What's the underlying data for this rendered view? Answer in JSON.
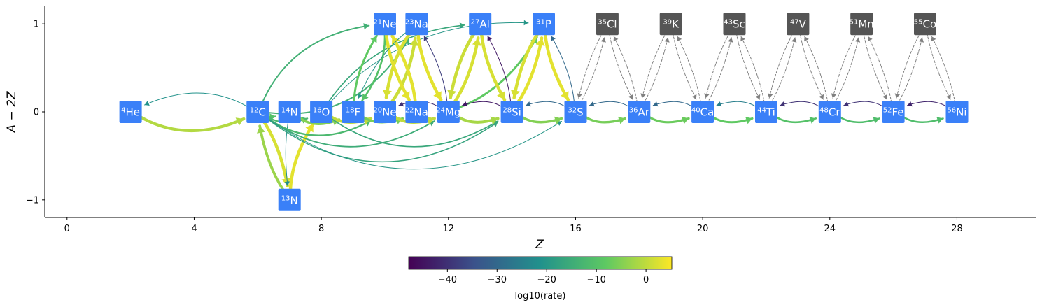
{
  "chart_data": {
    "type": "network",
    "xlabel": "Z",
    "ylabel": "A − 2Z",
    "xlim": [
      -0.7,
      30.5
    ],
    "ylim": [
      -1.2,
      1.2
    ],
    "xticks": [
      0,
      4,
      8,
      12,
      16,
      20,
      24,
      28
    ],
    "yticks": [
      -1,
      0,
      1
    ],
    "colorbar": {
      "label": "log10(rate)",
      "ticks": [
        -40,
        -30,
        -20,
        -10,
        0
      ],
      "min": -47.8,
      "max": 5.2,
      "colormap": [
        "#440154",
        "#3b528b",
        "#21918c",
        "#5ec962",
        "#fde725"
      ]
    },
    "colors": {
      "network_node": "#3a80f8",
      "external_node": "#555555",
      "external_edge": "#808080"
    },
    "nodes": [
      {
        "id": "he4",
        "A": 4,
        "el": "He",
        "Z": 2,
        "N_minus_Z": 0,
        "group": "network"
      },
      {
        "id": "c12",
        "A": 12,
        "el": "C",
        "Z": 6,
        "N_minus_Z": 0,
        "group": "network"
      },
      {
        "id": "n13",
        "A": 13,
        "el": "N",
        "Z": 7,
        "N_minus_Z": -1,
        "group": "network"
      },
      {
        "id": "n14",
        "A": 14,
        "el": "N",
        "Z": 7,
        "N_minus_Z": 0,
        "group": "network"
      },
      {
        "id": "o16",
        "A": 16,
        "el": "O",
        "Z": 8,
        "N_minus_Z": 0,
        "group": "network"
      },
      {
        "id": "f18",
        "A": 18,
        "el": "F",
        "Z": 9,
        "N_minus_Z": 0,
        "group": "network"
      },
      {
        "id": "ne20",
        "A": 20,
        "el": "Ne",
        "Z": 10,
        "N_minus_Z": 0,
        "group": "network"
      },
      {
        "id": "ne21",
        "A": 21,
        "el": "Ne",
        "Z": 10,
        "N_minus_Z": 1,
        "group": "network"
      },
      {
        "id": "na22",
        "A": 22,
        "el": "Na",
        "Z": 11,
        "N_minus_Z": 0,
        "group": "network"
      },
      {
        "id": "na23",
        "A": 23,
        "el": "Na",
        "Z": 11,
        "N_minus_Z": 1,
        "group": "network"
      },
      {
        "id": "mg24",
        "A": 24,
        "el": "Mg",
        "Z": 12,
        "N_minus_Z": 0,
        "group": "network"
      },
      {
        "id": "al27",
        "A": 27,
        "el": "Al",
        "Z": 13,
        "N_minus_Z": 1,
        "group": "network"
      },
      {
        "id": "si28",
        "A": 28,
        "el": "Si",
        "Z": 14,
        "N_minus_Z": 0,
        "group": "network"
      },
      {
        "id": "p31",
        "A": 31,
        "el": "P",
        "Z": 15,
        "N_minus_Z": 1,
        "group": "network"
      },
      {
        "id": "s32",
        "A": 32,
        "el": "S",
        "Z": 16,
        "N_minus_Z": 0,
        "group": "network"
      },
      {
        "id": "cl35",
        "A": 35,
        "el": "Cl",
        "Z": 17,
        "N_minus_Z": 1,
        "group": "external"
      },
      {
        "id": "ar36",
        "A": 36,
        "el": "Ar",
        "Z": 18,
        "N_minus_Z": 0,
        "group": "network"
      },
      {
        "id": "k39",
        "A": 39,
        "el": "K",
        "Z": 19,
        "N_minus_Z": 1,
        "group": "external"
      },
      {
        "id": "ca40",
        "A": 40,
        "el": "Ca",
        "Z": 20,
        "N_minus_Z": 0,
        "group": "network"
      },
      {
        "id": "sc43",
        "A": 43,
        "el": "Sc",
        "Z": 21,
        "N_minus_Z": 1,
        "group": "external"
      },
      {
        "id": "ti44",
        "A": 44,
        "el": "Ti",
        "Z": 22,
        "N_minus_Z": 0,
        "group": "network"
      },
      {
        "id": "v47",
        "A": 47,
        "el": "V",
        "Z": 23,
        "N_minus_Z": 1,
        "group": "external"
      },
      {
        "id": "cr48",
        "A": 48,
        "el": "Cr",
        "Z": 24,
        "N_minus_Z": 0,
        "group": "network"
      },
      {
        "id": "mn51",
        "A": 51,
        "el": "Mn",
        "Z": 25,
        "N_minus_Z": 1,
        "group": "external"
      },
      {
        "id": "fe52",
        "A": 52,
        "el": "Fe",
        "Z": 26,
        "N_minus_Z": 0,
        "group": "network"
      },
      {
        "id": "co55",
        "A": 55,
        "el": "Co",
        "Z": 27,
        "N_minus_Z": 1,
        "group": "external"
      },
      {
        "id": "ni56",
        "A": 56,
        "el": "Ni",
        "Z": 28,
        "N_minus_Z": 0,
        "group": "network"
      }
    ],
    "edges": [
      {
        "from": "he4",
        "to": "c12",
        "rate": -1,
        "curve": 0.28
      },
      {
        "from": "c12",
        "to": "he4",
        "rate": -21,
        "curve": 0.28
      },
      {
        "from": "c12",
        "to": "n13",
        "rate": 2,
        "curve": -0.12
      },
      {
        "from": "n13",
        "to": "c12",
        "rate": -3,
        "curve": -0.12
      },
      {
        "from": "c12",
        "to": "n14",
        "rate": -10,
        "curve": 0.3
      },
      {
        "from": "n14",
        "to": "n13",
        "rate": -22,
        "curve": 0.08
      },
      {
        "from": "n13",
        "to": "o16",
        "rate": 3,
        "curve": -0.15
      },
      {
        "from": "c12",
        "to": "o16",
        "rate": -12,
        "curve": 0.3
      },
      {
        "from": "c12",
        "to": "ne20",
        "rate": -12,
        "curve": 0.35
      },
      {
        "from": "c12",
        "to": "na23",
        "rate": -14,
        "curve": 0.35
      },
      {
        "from": "c12",
        "to": "ne21",
        "rate": -14,
        "curve": -0.3
      },
      {
        "from": "c12",
        "to": "mg24",
        "rate": -15,
        "curve": 0.35
      },
      {
        "from": "c12",
        "to": "si28",
        "rate": -17,
        "curve": 0.38
      },
      {
        "from": "c12",
        "to": "s32",
        "rate": -20,
        "curve": 0.35
      },
      {
        "from": "n14",
        "to": "f18",
        "rate": -5,
        "curve": 0.35
      },
      {
        "from": "o16",
        "to": "ne20",
        "rate": 0,
        "curve": 0.3
      },
      {
        "from": "o16",
        "to": "si28",
        "rate": -16,
        "curve": 0.35
      },
      {
        "from": "o16",
        "to": "al27",
        "rate": -16,
        "curve": -0.25
      },
      {
        "from": "o16",
        "to": "p31",
        "rate": -20,
        "curve": -0.25
      },
      {
        "from": "f18",
        "to": "ne21",
        "rate": -8,
        "curve": -0.15
      },
      {
        "from": "f18",
        "to": "na22",
        "rate": -6,
        "curve": 0.3
      },
      {
        "from": "ne21",
        "to": "f18",
        "rate": -10,
        "curve": -0.2
      },
      {
        "from": "ne20",
        "to": "mg24",
        "rate": 0,
        "curve": 0.3
      },
      {
        "from": "ne20",
        "to": "na23",
        "rate": 1,
        "curve": 0.15
      },
      {
        "from": "na23",
        "to": "ne20",
        "rate": 2,
        "curve": 0.15
      },
      {
        "from": "ne21",
        "to": "na22",
        "rate": 3,
        "curve": 0.12
      },
      {
        "from": "na22",
        "to": "ne21",
        "rate": 3,
        "curve": 0.12
      },
      {
        "from": "na23",
        "to": "mg24",
        "rate": 3,
        "curve": 0.12
      },
      {
        "from": "mg24",
        "to": "na23",
        "rate": -38,
        "curve": 0.12
      },
      {
        "from": "na23",
        "to": "f18",
        "rate": -20,
        "curve": 0.15
      },
      {
        "from": "mg24",
        "to": "ne20",
        "rate": -40,
        "curve": 0.3
      },
      {
        "from": "mg24",
        "to": "si28",
        "rate": -2,
        "curve": 0.3
      },
      {
        "from": "mg24",
        "to": "al27",
        "rate": 2,
        "curve": 0.12
      },
      {
        "from": "al27",
        "to": "mg24",
        "rate": 1,
        "curve": 0.12
      },
      {
        "from": "mg24",
        "to": "p31",
        "rate": -8,
        "curve": 0.2
      },
      {
        "from": "al27",
        "to": "si28",
        "rate": 2,
        "curve": 0.12
      },
      {
        "from": "si28",
        "to": "al27",
        "rate": -44,
        "curve": 0.12
      },
      {
        "from": "si28",
        "to": "mg24",
        "rate": -44,
        "curve": 0.3
      },
      {
        "from": "si28",
        "to": "s32",
        "rate": -5,
        "curve": 0.3
      },
      {
        "from": "si28",
        "to": "p31",
        "rate": 3,
        "curve": 0.12
      },
      {
        "from": "p31",
        "to": "si28",
        "rate": 2,
        "curve": 0.12
      },
      {
        "from": "p31",
        "to": "s32",
        "rate": 3,
        "curve": 0.12
      },
      {
        "from": "s32",
        "to": "p31",
        "rate": -30,
        "curve": 0.12
      },
      {
        "from": "s32",
        "to": "si28",
        "rate": -30,
        "curve": 0.3
      },
      {
        "from": "s32",
        "to": "ar36",
        "rate": -6,
        "curve": 0.3
      },
      {
        "from": "ar36",
        "to": "s32",
        "rate": -30,
        "curve": 0.3
      },
      {
        "from": "ar36",
        "to": "ca40",
        "rate": -7,
        "curve": 0.3
      },
      {
        "from": "ca40",
        "to": "ar36",
        "rate": -30,
        "curve": 0.3
      },
      {
        "from": "ca40",
        "to": "ti44",
        "rate": -8,
        "curve": 0.3
      },
      {
        "from": "ti44",
        "to": "ca40",
        "rate": -25,
        "curve": 0.3
      },
      {
        "from": "ti44",
        "to": "cr48",
        "rate": -10,
        "curve": 0.3
      },
      {
        "from": "cr48",
        "to": "ti44",
        "rate": -40,
        "curve": 0.3
      },
      {
        "from": "cr48",
        "to": "fe52",
        "rate": -11,
        "curve": 0.3
      },
      {
        "from": "fe52",
        "to": "cr48",
        "rate": -40,
        "curve": 0.3
      },
      {
        "from": "fe52",
        "to": "ni56",
        "rate": -11,
        "curve": 0.3
      },
      {
        "from": "ni56",
        "to": "fe52",
        "rate": -42,
        "curve": 0.3
      }
    ],
    "external_edges": [
      {
        "from": "s32",
        "to": "cl35"
      },
      {
        "from": "cl35",
        "to": "s32"
      },
      {
        "from": "cl35",
        "to": "ar36"
      },
      {
        "from": "ar36",
        "to": "cl35"
      },
      {
        "from": "ar36",
        "to": "k39"
      },
      {
        "from": "k39",
        "to": "ar36"
      },
      {
        "from": "k39",
        "to": "ca40"
      },
      {
        "from": "ca40",
        "to": "k39"
      },
      {
        "from": "ca40",
        "to": "sc43"
      },
      {
        "from": "sc43",
        "to": "ca40"
      },
      {
        "from": "sc43",
        "to": "ti44"
      },
      {
        "from": "ti44",
        "to": "sc43"
      },
      {
        "from": "ti44",
        "to": "v47"
      },
      {
        "from": "v47",
        "to": "ti44"
      },
      {
        "from": "v47",
        "to": "cr48"
      },
      {
        "from": "cr48",
        "to": "v47"
      },
      {
        "from": "cr48",
        "to": "mn51"
      },
      {
        "from": "mn51",
        "to": "cr48"
      },
      {
        "from": "mn51",
        "to": "fe52"
      },
      {
        "from": "fe52",
        "to": "mn51"
      },
      {
        "from": "fe52",
        "to": "co55"
      },
      {
        "from": "co55",
        "to": "fe52"
      },
      {
        "from": "co55",
        "to": "ni56"
      },
      {
        "from": "ni56",
        "to": "co55"
      }
    ]
  }
}
